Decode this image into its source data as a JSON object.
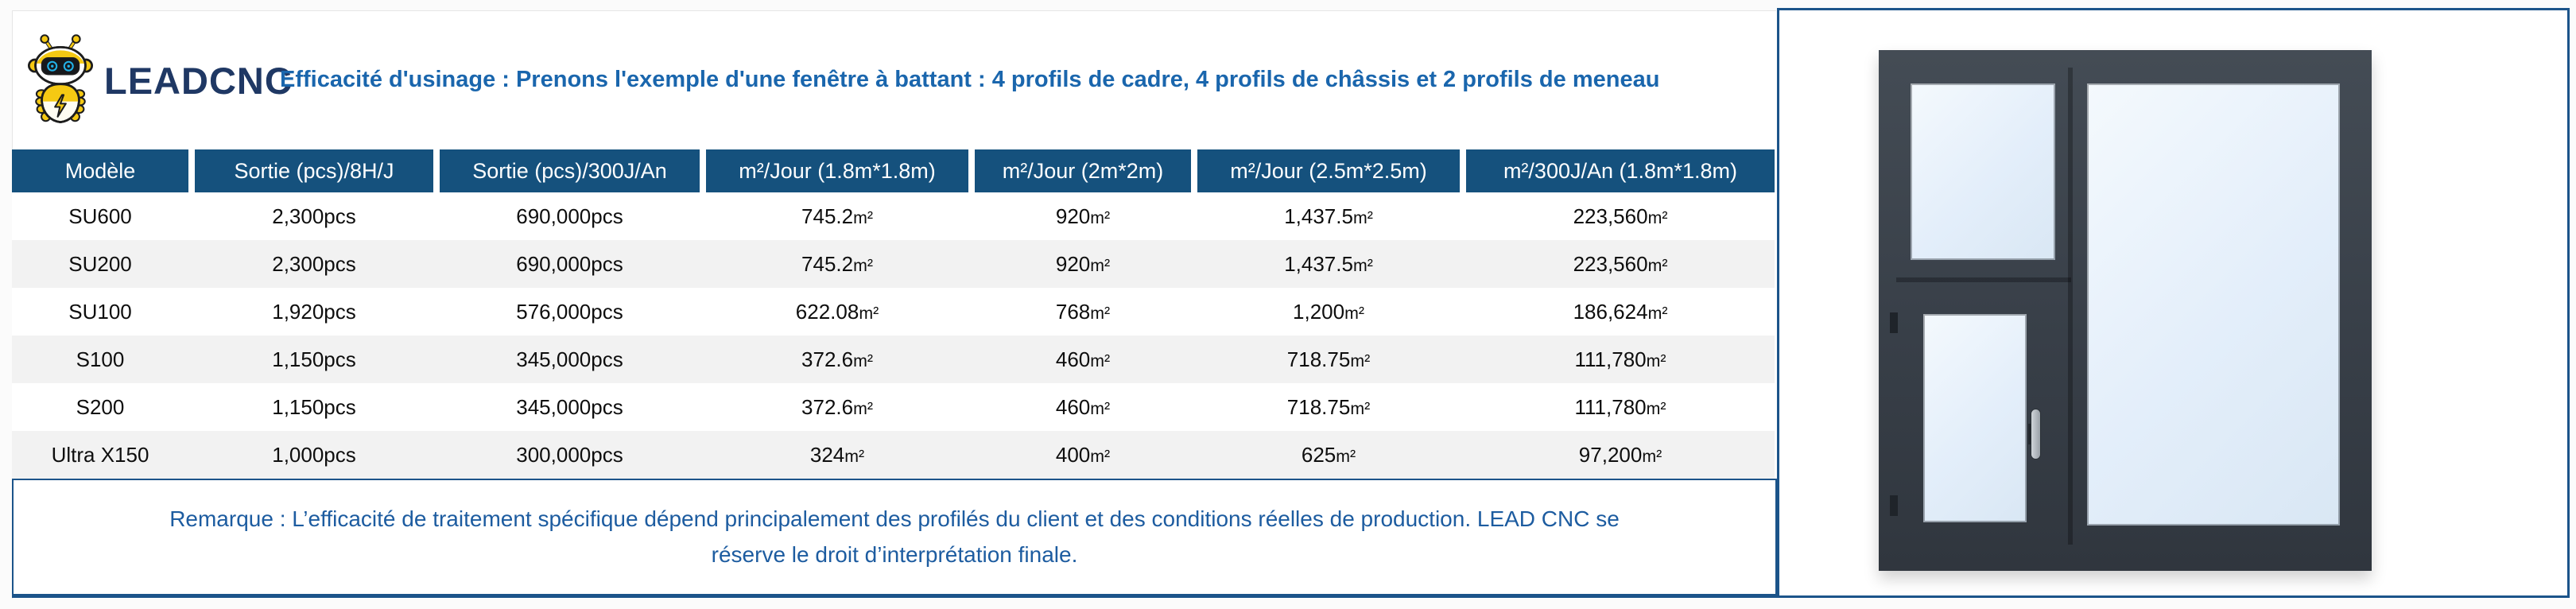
{
  "brand": {
    "name": "LEADCNC",
    "logo": "robot-mascot-icon"
  },
  "header": {
    "title": "Efficacité d'usinage : Prenons l'exemple d'une fenêtre à battant : 4 profils de cadre, 4 profils de châssis et 2 profils de meneau"
  },
  "table": {
    "columns": [
      "Modèle",
      "Sortie (pcs)/8H/J",
      "Sortie (pcs)/300J/An",
      "m²/Jour（1.8m*1.8m）",
      "m²/Jour（2m*2m）",
      "m²/Jour（2.5m*2.5m）",
      "m²/300J/An（1.8m*1.8m）"
    ],
    "rows": [
      [
        "SU600",
        "2,300pcs",
        "690,000pcs",
        "745.2㎡",
        "920㎡",
        "1,437.5㎡",
        "223,560㎡"
      ],
      [
        "SU200",
        "2,300pcs",
        "690,000pcs",
        "745.2㎡",
        "920㎡",
        "1,437.5㎡",
        "223,560㎡"
      ],
      [
        "SU100",
        "1,920pcs",
        "576,000pcs",
        "622.08㎡",
        "768㎡",
        "1,200㎡",
        "186,624㎡"
      ],
      [
        "S100",
        "1,150pcs",
        "345,000pcs",
        "372.6㎡",
        "460㎡",
        "718.75㎡",
        "111,780㎡"
      ],
      [
        "S200",
        "1,150pcs",
        "345,000pcs",
        "372.6㎡",
        "460㎡",
        "718.75㎡",
        "111,780㎡"
      ],
      [
        "Ultra X150",
        "1,000pcs",
        "300,000pcs",
        "324㎡",
        "400㎡",
        "625㎡",
        "97,200㎡"
      ]
    ]
  },
  "remark": {
    "text": "Remarque : L’efficacité de traitement spécifique dépend principalement des profilés du client et des conditions réelles de production. LEAD CNC se réserve le droit d’interprétation finale."
  },
  "image": {
    "description": "fenêtre à battant photo"
  },
  "colors": {
    "header_bg": "#15517d",
    "row_alt_bg": "#f2f2f2",
    "title_blue": "#1a66ad",
    "remark_blue": "#1d5ca0",
    "brand_navy": "#1f3864",
    "panel_border": "#1c548a",
    "window_frame": "#3a424c",
    "glass_blue": "#e3eefa",
    "logo_yellow": "#f5c913"
  }
}
